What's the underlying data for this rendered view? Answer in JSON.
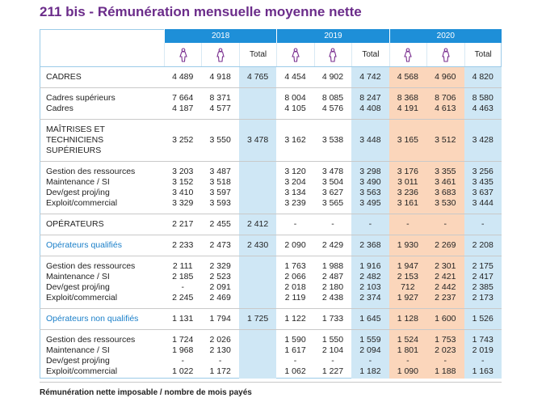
{
  "title": "211 bis - Rémunération mensuelle moyenne nette",
  "header": {
    "years": [
      {
        "year": "2018",
        "total": "Total"
      },
      {
        "year": "2019",
        "total": "Total"
      },
      {
        "year": "2020",
        "total": "Total"
      }
    ]
  },
  "colors": {
    "header": "#1e8fd8",
    "total_column": "#cfe7f5",
    "highlight_column": "#fbd6bb",
    "icon": "#7a2f8f",
    "label_blue": "#1a7fc9"
  },
  "groups": [
    {
      "rows": [
        {
          "label": "CADRES",
          "values": [
            "4 489",
            "4 918",
            "4 765",
            "4 454",
            "4 902",
            "4 742",
            "4 568",
            "4 960",
            "4 820"
          ]
        }
      ]
    },
    {
      "rows": [
        {
          "label": "Cadres supérieurs",
          "values": [
            "7 664",
            "8 371",
            null,
            "8 004",
            "8 085",
            "8 247",
            "8 368",
            "8 706",
            "8 580"
          ]
        },
        {
          "label": "Cadres",
          "values": [
            "4 187",
            "4 577",
            null,
            "4 105",
            "4 576",
            "4 408",
            "4 191",
            "4 613",
            "4 463"
          ]
        }
      ]
    },
    {
      "rows": [
        {
          "label": "MAÎTRISES ET TECHNICIENS SUPÉRIEURS",
          "values": [
            "3 252",
            "3 550",
            "3 478",
            "3 162",
            "3 538",
            "3 448",
            "3 165",
            "3 512",
            "3 428"
          ]
        }
      ]
    },
    {
      "rows": [
        {
          "label": "Gestion des ressources",
          "values": [
            "3 203",
            "3 487",
            null,
            "3 120",
            "3 478",
            "3 298",
            "3 176",
            "3 355",
            "3 256"
          ]
        },
        {
          "label": "Maintenance / SI",
          "values": [
            "3 152",
            "3 518",
            null,
            "3 204",
            "3 504",
            "3 490",
            "3 011",
            "3 461",
            "3 435"
          ]
        },
        {
          "label": "Dev/gest proj/ing",
          "values": [
            "3 410",
            "3 597",
            null,
            "3 134",
            "3 627",
            "3 563",
            "3 236",
            "3 683",
            "3 637"
          ]
        },
        {
          "label": "Exploit/commercial",
          "values": [
            "3 329",
            "3 593",
            null,
            "3 239",
            "3 565",
            "3 495",
            "3 161",
            "3 530",
            "3 444"
          ]
        }
      ]
    },
    {
      "rows": [
        {
          "label": "OPÉRATEURS",
          "values": [
            "2 217",
            "2 455",
            "2 412",
            "-",
            "-",
            "-",
            "-",
            "-",
            "-"
          ]
        }
      ]
    },
    {
      "label_color": "#1a7fc9",
      "rows": [
        {
          "label": "Opérateurs qualifiés",
          "values": [
            "2 233",
            "2 473",
            "2 430",
            "2 090",
            "2 429",
            "2 368",
            "1 930",
            "2 269",
            "2 208"
          ]
        }
      ]
    },
    {
      "rows": [
        {
          "label": "Gestion des ressources",
          "values": [
            "2 111",
            "2 329",
            null,
            "1 763",
            "1 988",
            "1 916",
            "1 947",
            "2 301",
            "2 175"
          ]
        },
        {
          "label": "Maintenance / SI",
          "values": [
            "2 185",
            "2 523",
            null,
            "2 066",
            "2 487",
            "2 482",
            "2 153",
            "2 421",
            "2 417"
          ]
        },
        {
          "label": "Dev/gest proj/ing",
          "values": [
            "-",
            "2 091",
            null,
            "2 018",
            "2 180",
            "2 103",
            "712",
            "2 442",
            "2 385"
          ]
        },
        {
          "label": "Exploit/commercial",
          "values": [
            "2 245",
            "2 469",
            null,
            "2 119",
            "2 438",
            "2 374",
            "1 927",
            "2 237",
            "2 173"
          ]
        }
      ]
    },
    {
      "label_color": "#1a7fc9",
      "rows": [
        {
          "label": "Opérateurs non qualifiés",
          "values": [
            "1 131",
            "1 794",
            "1 725",
            "1 122",
            "1 733",
            "1 645",
            "1 128",
            "1 600",
            "1 526"
          ]
        }
      ]
    },
    {
      "rows": [
        {
          "label": "Gestion des ressources",
          "values": [
            "1 724",
            "2 026",
            null,
            "1 590",
            "1 550",
            "1 559",
            "1 524",
            "1 753",
            "1 743"
          ]
        },
        {
          "label": "Maintenance / SI",
          "values": [
            "1 968",
            "2 130",
            null,
            "1 617",
            "2 104",
            "2 094",
            "1 801",
            "2 023",
            "2 019"
          ]
        },
        {
          "label": "Dev/gest proj/ing",
          "values": [
            "-",
            "-",
            null,
            "-",
            "-",
            "-",
            "-",
            "-",
            "-"
          ]
        },
        {
          "label": "Exploit/commercial",
          "values": [
            "1 022",
            "1 172",
            null,
            "1 062",
            "1 227",
            "1 182",
            "1 090",
            "1 188",
            "1 163"
          ]
        }
      ]
    }
  ],
  "footer": "Rémunération nette imposable / nombre de mois payés"
}
